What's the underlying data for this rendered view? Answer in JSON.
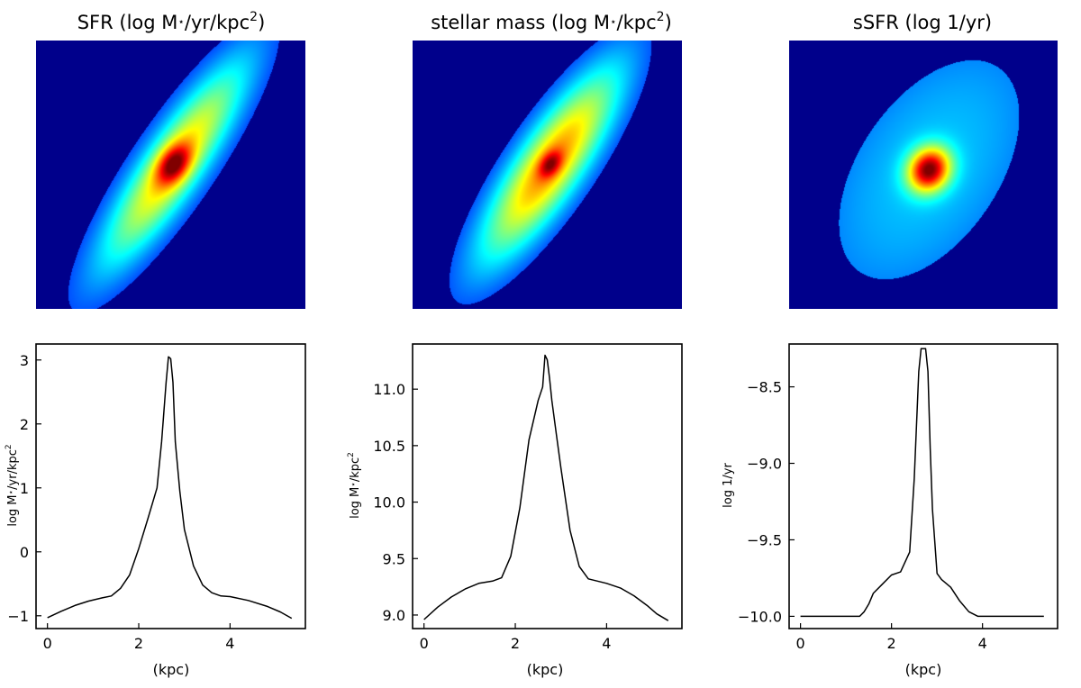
{
  "colors": {
    "background": "#00008b",
    "jet": [
      "#00007f",
      "#0000ff",
      "#007fff",
      "#00ffff",
      "#7fff7f",
      "#ffff00",
      "#ff7f00",
      "#ff0000",
      "#7f0000"
    ]
  },
  "chart_data": [
    {
      "type": "heatmap",
      "title": "SFR (log M",
      "title_star": "⋆",
      "title_tail": "/yr/kpc",
      "title_sup": "2",
      "title_close": ")",
      "colormap": "jet",
      "image": {
        "cx": 0.51,
        "cy": 0.46,
        "angle_deg": -56,
        "sigma_major": 0.32,
        "sigma_minor": 0.078,
        "amplitude": 0.62,
        "core_sigma": 0.045,
        "core_amplitude": 0.45
      }
    },
    {
      "type": "heatmap",
      "title": "stellar mass (log M",
      "title_star": "⋆",
      "title_tail": "/kpc",
      "title_sup": "2",
      "title_close": ")",
      "colormap": "jet",
      "image": {
        "cx": 0.51,
        "cy": 0.46,
        "angle_deg": -56,
        "sigma_major": 0.3,
        "sigma_minor": 0.085,
        "amplitude": 0.7,
        "core_sigma": 0.03,
        "core_amplitude": 0.32
      }
    },
    {
      "type": "heatmap",
      "title": "sSFR (log 1/yr)",
      "colormap": "jet",
      "image": {
        "cx": 0.52,
        "cy": 0.48,
        "angle_deg": -56,
        "plateau": 0.26,
        "core_sigma": 0.06,
        "core_amplitude": 0.7
      }
    },
    {
      "type": "line",
      "xlabel": "(kpc)",
      "ylabel": "log M",
      "ylabel_star": "⋆",
      "ylabel_tail": "/yr/kpc",
      "ylabel_sup": "2",
      "xlim": [
        -0.25,
        5.65
      ],
      "ylim": [
        -1.2,
        3.25
      ],
      "xticks": [
        0,
        2,
        4
      ],
      "yticks": [
        -1,
        0,
        1,
        2,
        3
      ],
      "x": [
        0,
        0.3,
        0.6,
        0.9,
        1.2,
        1.4,
        1.6,
        1.8,
        2.0,
        2.2,
        2.4,
        2.5,
        2.6,
        2.65,
        2.7,
        2.75,
        2.8,
        2.9,
        3.0,
        3.2,
        3.4,
        3.6,
        3.8,
        4.0,
        4.4,
        4.8,
        5.1,
        5.35
      ],
      "y": [
        -1.03,
        -0.93,
        -0.84,
        -0.77,
        -0.72,
        -0.69,
        -0.57,
        -0.36,
        0.05,
        0.52,
        1.0,
        1.72,
        2.65,
        3.05,
        3.02,
        2.65,
        1.72,
        0.95,
        0.35,
        -0.22,
        -0.52,
        -0.64,
        -0.69,
        -0.7,
        -0.76,
        -0.85,
        -0.94,
        -1.04
      ]
    },
    {
      "type": "line",
      "xlabel": "(kpc)",
      "ylabel": "log M",
      "ylabel_star": "⋆",
      "ylabel_tail": "/kpc",
      "ylabel_sup": "2",
      "xlim": [
        -0.25,
        5.65
      ],
      "ylim": [
        8.88,
        11.4
      ],
      "xticks": [
        0,
        2,
        4
      ],
      "yticks": [
        9.0,
        9.5,
        10.0,
        10.5,
        11.0
      ],
      "ytick_labels": [
        "9.0",
        "9.5",
        "10.0",
        "10.5",
        "11.0"
      ],
      "x": [
        0,
        0.3,
        0.6,
        0.9,
        1.2,
        1.5,
        1.7,
        1.9,
        2.1,
        2.3,
        2.5,
        2.6,
        2.65,
        2.7,
        2.75,
        2.8,
        2.9,
        3.0,
        3.2,
        3.4,
        3.6,
        4.0,
        4.3,
        4.6,
        4.9,
        5.1,
        5.35
      ],
      "y": [
        8.96,
        9.07,
        9.16,
        9.23,
        9.28,
        9.3,
        9.33,
        9.52,
        9.95,
        10.55,
        10.9,
        11.02,
        11.3,
        11.26,
        11.1,
        10.9,
        10.6,
        10.3,
        9.75,
        9.43,
        9.32,
        9.28,
        9.24,
        9.17,
        9.08,
        9.01,
        8.95
      ]
    },
    {
      "type": "line",
      "xlabel": "(kpc)",
      "ylabel": "log 1/yr",
      "xlim": [
        -0.25,
        5.65
      ],
      "ylim": [
        -10.08,
        -8.22
      ],
      "xticks": [
        0,
        2,
        4
      ],
      "yticks": [
        -10.0,
        -9.5,
        -9.0,
        -8.5
      ],
      "ytick_labels": [
        "−10.0",
        "−9.5",
        "−9.0",
        "−8.5"
      ],
      "x": [
        0,
        0.5,
        1.0,
        1.3,
        1.4,
        1.5,
        1.6,
        1.8,
        2.0,
        2.2,
        2.4,
        2.5,
        2.55,
        2.6,
        2.65,
        2.7,
        2.75,
        2.8,
        2.85,
        2.9,
        3.0,
        3.1,
        3.3,
        3.5,
        3.7,
        3.9,
        4.0,
        4.5,
        5.0,
        5.35
      ],
      "y": [
        -10.0,
        -10.0,
        -10.0,
        -10.0,
        -9.97,
        -9.92,
        -9.85,
        -9.79,
        -9.73,
        -9.71,
        -9.58,
        -9.1,
        -8.75,
        -8.4,
        -8.25,
        -8.25,
        -8.25,
        -8.4,
        -8.9,
        -9.3,
        -9.72,
        -9.76,
        -9.81,
        -9.9,
        -9.97,
        -10.0,
        -10.0,
        -10.0,
        -10.0,
        -10.0
      ]
    }
  ]
}
